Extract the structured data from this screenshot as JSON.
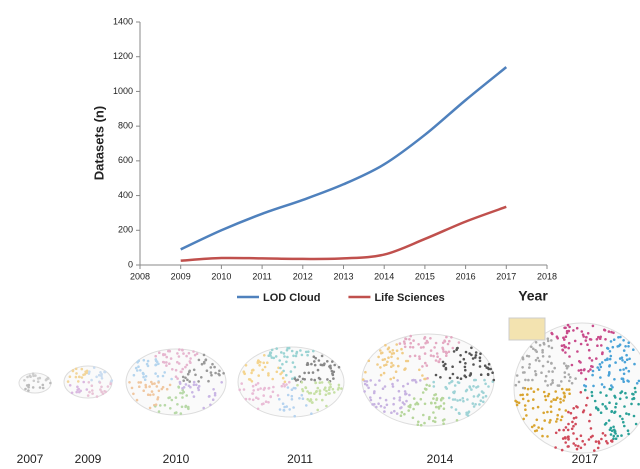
{
  "chart_data": {
    "type": "line",
    "x": [
      2009,
      2010,
      2011,
      2012,
      2013,
      2014,
      2015,
      2016,
      2017
    ],
    "series": [
      {
        "name": "LOD Cloud",
        "color": "#4f81bd",
        "values": [
          90,
          200,
          295,
          375,
          465,
          580,
          750,
          950,
          1140
        ]
      },
      {
        "name": "Life Sciences",
        "color": "#c0504d",
        "values": [
          25,
          40,
          38,
          35,
          38,
          60,
          150,
          250,
          335
        ]
      }
    ],
    "xlim": [
      2008,
      2018
    ],
    "xticks": [
      2008,
      2009,
      2010,
      2011,
      2012,
      2013,
      2014,
      2015,
      2016,
      2017,
      2018
    ],
    "ylim": [
      0,
      1400
    ],
    "yticks": [
      0,
      200,
      400,
      600,
      800,
      1000,
      1200,
      1400
    ],
    "y_label": "Datasets (n)",
    "x_label": "Year",
    "legend": "bottom",
    "grid": false
  },
  "snapshots": [
    "2007",
    "2009",
    "2010",
    "2011",
    "2014",
    "2017"
  ]
}
